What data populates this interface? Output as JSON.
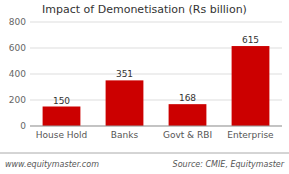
{
  "chart_data": {
    "type": "bar",
    "title": "Impact of Demonetisation (Rs billion)",
    "categories": [
      "House Hold",
      "Banks",
      "Govt & RBI",
      "Enterprise"
    ],
    "values": [
      150,
      351,
      168,
      615
    ],
    "color": "#cc0000",
    "ylim": [
      0,
      800
    ],
    "yticks": [
      0,
      200,
      400,
      600,
      800
    ],
    "grid": true,
    "data_labels": true,
    "annotations": [
      "www.equitymaster.com",
      "Source: CMIE, Equitymaster"
    ]
  }
}
